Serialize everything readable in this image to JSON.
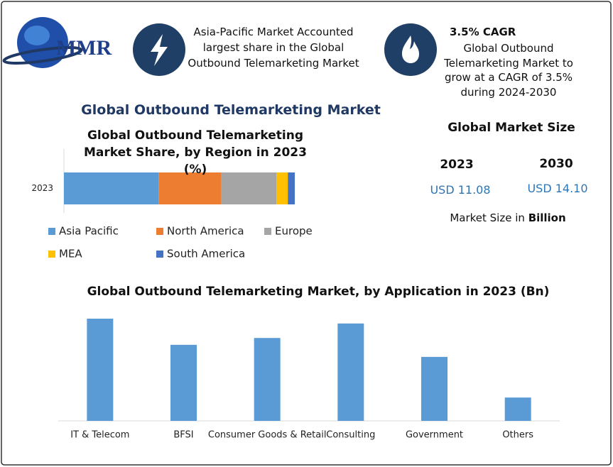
{
  "header": {
    "logo": "MMR",
    "highlight_1": "Asia-Pacific Market Accounted largest share in the Global Outbound Telemarketing Market",
    "highlight_2_title": "3.5% CAGR",
    "highlight_2_text": "Global Outbound Telemarketing Market to grow at a CAGR of 3.5% during 2024-2030"
  },
  "title": "Global Outbound Telemarketing Market",
  "market_size": {
    "title": "Global Market Size",
    "years": [
      "2023",
      "2030"
    ],
    "values": [
      "USD 11.08",
      "USD 14.10"
    ],
    "note": "Market Size in",
    "unit": "Billion"
  },
  "chart_data": [
    {
      "type": "stacked_bar",
      "title": "Global Outbound Telemarketing Market Share, by Region in 2023 (%)",
      "categories": [
        "2023"
      ],
      "series": [
        {
          "name": "Asia Pacific",
          "color": "#5b9bd5",
          "values": [
            41
          ]
        },
        {
          "name": "North America",
          "color": "#ed7d31",
          "values": [
            27
          ]
        },
        {
          "name": "Europe",
          "color": "#a5a5a5",
          "values": [
            24
          ]
        },
        {
          "name": "MEA",
          "color": "#ffc000",
          "values": [
            5
          ]
        },
        {
          "name": "South America",
          "color": "#4472c4",
          "values": [
            3
          ]
        }
      ]
    },
    {
      "type": "bar",
      "title": "Global Outbound Telemarketing Market, by Application in 2023 (Bn)",
      "categories": [
        "IT & Telecom",
        "BFSI",
        "Consumer Goods & Retail",
        "Consulting",
        "Government",
        "Others"
      ],
      "values": [
        2.54,
        1.89,
        2.06,
        2.42,
        1.59,
        0.58
      ],
      "color": "#5b9bd5"
    }
  ]
}
